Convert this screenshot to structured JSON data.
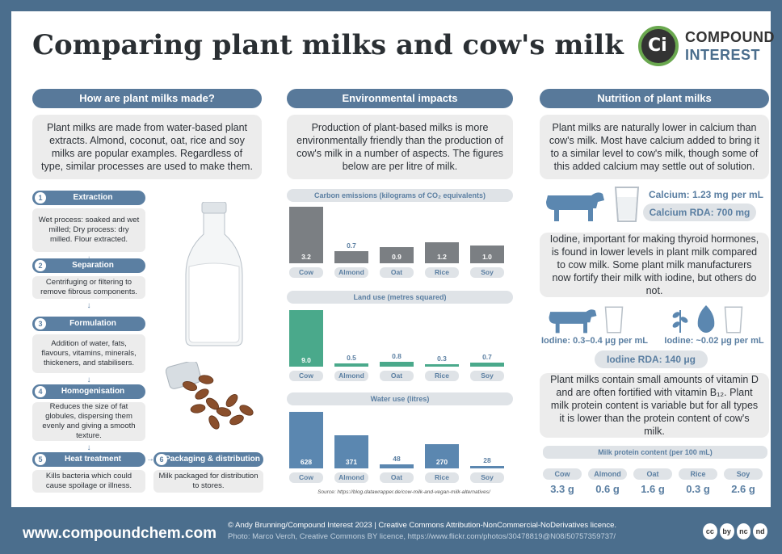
{
  "title": "Comparing plant milks and cow's milk",
  "logo": {
    "mark": "Ci",
    "line1": "COMPOUND",
    "line2": "INTEREST"
  },
  "sections": {
    "how": "How are plant milks made?",
    "env": "Environmental impacts",
    "nutrition": "Nutrition of plant milks"
  },
  "how_intro": "Plant milks are made from water-based plant extracts. Almond, coconut, oat, rice and soy milks are popular examples. Regardless of type, similar processes are used to make them.",
  "steps": [
    {
      "num": "1",
      "title": "Extraction",
      "desc": "Wet process: soaked and wet milled; Dry process: dry milled. Flour extracted."
    },
    {
      "num": "2",
      "title": "Separation",
      "desc": "Centrifuging or filtering to remove fibrous components."
    },
    {
      "num": "3",
      "title": "Formulation",
      "desc": "Addition of water, fats, flavours, vitamins, minerals, thickeners, and stabilisers."
    },
    {
      "num": "4",
      "title": "Homogenisation",
      "desc": "Reduces the size of fat globules, dispersing them evenly and giving a smooth texture."
    },
    {
      "num": "5",
      "title": "Heat treatment",
      "desc": "Kills bacteria which could cause spoilage or illness."
    },
    {
      "num": "6",
      "title": "Packaging & distribution",
      "desc": "Milk packaged for distribution to stores."
    }
  ],
  "env_intro": "Production of plant-based milks is more environmentally friendly than the production of cow's milk in a number of aspects. The figures below are per litre of milk.",
  "chart_data": [
    {
      "type": "bar",
      "title": "Carbon emissions (kilograms of CO₂ equivalents)",
      "categories": [
        "Cow",
        "Almond",
        "Oat",
        "Rice",
        "Soy"
      ],
      "values": [
        3.2,
        0.7,
        0.9,
        1.2,
        1.0
      ],
      "labels": [
        "3.2",
        "0.7",
        "0.9",
        "1.2",
        "1.0"
      ],
      "color": "#7b7f83"
    },
    {
      "type": "bar",
      "title": "Land use (metres squared)",
      "categories": [
        "Cow",
        "Almond",
        "Oat",
        "Rice",
        "Soy"
      ],
      "values": [
        9.0,
        0.5,
        0.8,
        0.3,
        0.7
      ],
      "labels": [
        "9.0",
        "0.5",
        "0.8",
        "0.3",
        "0.7"
      ],
      "color": "#4aa98b"
    },
    {
      "type": "bar",
      "title": "Water use (litres)",
      "categories": [
        "Cow",
        "Almond",
        "Oat",
        "Rice",
        "Soy"
      ],
      "values": [
        628,
        371,
        48,
        270,
        28
      ],
      "labels": [
        "628",
        "371",
        "48",
        "270",
        "28"
      ],
      "color": "#5b87b0"
    }
  ],
  "source": "Source: https://blog.datawrapper.de/cow-milk-and-vegan-milk-alternatives/",
  "calcium_intro": "Plant milks are naturally lower in calcium than cow's milk. Most have calcium added to bring it to a similar level to cow's milk, though some of this added calcium may settle out of solution.",
  "calcium_value": "Calcium: 1.23 mg per mL",
  "calcium_rda": "Calcium RDA: 700 mg",
  "iodine_intro": "Iodine, important for making thyroid hormones, is found in lower levels in plant milk compared to cow milk. Some plant milk manufacturers now fortify their milk with iodine, but others do not.",
  "iodine_cow": "Iodine: 0.3–0.4 μg per mL",
  "iodine_plant": "Iodine: ~0.02 μg per mL",
  "iodine_rda": "Iodine RDA: 140 μg",
  "vitamin_intro": "Plant milks contain small amounts of vitamin D and are often fortified with vitamin B₁₂. Plant milk protein content is variable but for all types it is lower than the protein content of cow's milk.",
  "protein": {
    "title": "Milk protein content (per 100 mL)",
    "items": [
      {
        "name": "Cow",
        "value": "3.3 g"
      },
      {
        "name": "Almond",
        "value": "0.6 g"
      },
      {
        "name": "Oat",
        "value": "1.6 g"
      },
      {
        "name": "Rice",
        "value": "0.3 g"
      },
      {
        "name": "Soy",
        "value": "2.6 g"
      }
    ]
  },
  "footer": {
    "url": "www.compoundchem.com",
    "credit1": "© Andy Brunning/Compound Interest 2023 | Creative Commons Attribution-NonCommercial-NoDerivatives licence.",
    "credit2": "Photo: Marco Verch, Creative Commons BY licence, https://www.flickr.com/photos/30478819@N08/50757359737/",
    "cc_icons": [
      "cc",
      "by",
      "nc",
      "nd"
    ]
  }
}
